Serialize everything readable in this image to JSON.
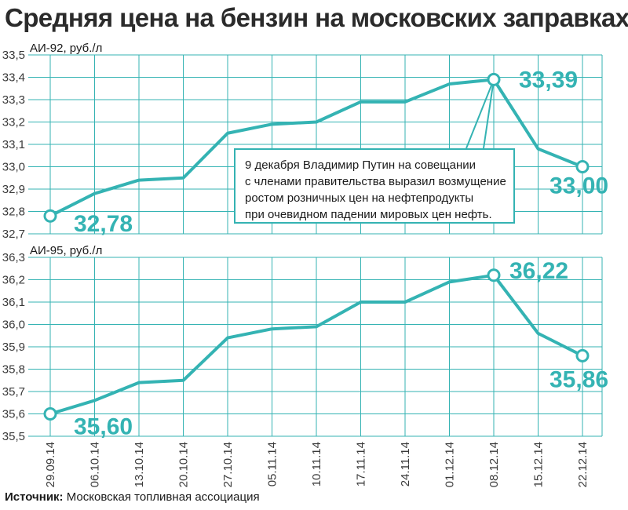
{
  "title": "Средняя цена на бензин на московских заправках",
  "note_lines": [
    "9 декабря Владимир Путин на совещании",
    "с членами правительства выразил возмущение",
    "ростом розничных цен на нефтепродукты",
    "при очевидном падении мировых цен нефть."
  ],
  "source": {
    "label": "Источник:",
    "text": "Московская топливная ассоциация"
  },
  "colors": {
    "accent": "#34b3b3",
    "grid": "#34b3b3",
    "text": "#1a1a1a"
  },
  "chart_data": [
    {
      "type": "line",
      "ylabel": "АИ-92, руб./л",
      "ylim": [
        32.7,
        33.5
      ],
      "yticks": [
        "32,7",
        "32,8",
        "32,9",
        "33,0",
        "33,1",
        "33,2",
        "33,3",
        "33,4",
        "33,5"
      ],
      "x": [
        "29.09.14",
        "06.10.14",
        "13.10.14",
        "20.10.14",
        "27.10.14",
        "05.11.14",
        "10.11.14",
        "17.11.14",
        "24.11.14",
        "01.12.14",
        "08.12.14",
        "15.12.14",
        "22.12.14"
      ],
      "values": [
        32.78,
        32.88,
        32.94,
        32.95,
        33.15,
        33.19,
        33.2,
        33.29,
        33.29,
        33.37,
        33.39,
        33.08,
        33.0
      ],
      "data_labels": [
        {
          "index": 0,
          "text": "32,78"
        },
        {
          "index": 10,
          "text": "33,39"
        },
        {
          "index": 12,
          "text": "33,00"
        }
      ],
      "grid": true
    },
    {
      "type": "line",
      "ylabel": "АИ-95, руб./л",
      "ylim": [
        35.5,
        36.3
      ],
      "yticks": [
        "35,5",
        "35,6",
        "35,7",
        "35,8",
        "35,9",
        "36,0",
        "36,1",
        "36,2",
        "36,3"
      ],
      "x": [
        "29.09.14",
        "06.10.14",
        "13.10.14",
        "20.10.14",
        "27.10.14",
        "05.11.14",
        "10.11.14",
        "17.11.14",
        "24.11.14",
        "01.12.14",
        "08.12.14",
        "15.12.14",
        "22.12.14"
      ],
      "values": [
        35.6,
        35.66,
        35.74,
        35.75,
        35.94,
        35.98,
        35.99,
        36.1,
        36.1,
        36.19,
        36.22,
        35.96,
        35.86
      ],
      "data_labels": [
        {
          "index": 0,
          "text": "35,60"
        },
        {
          "index": 10,
          "text": "36,22"
        },
        {
          "index": 12,
          "text": "35,86"
        }
      ],
      "grid": true
    }
  ]
}
